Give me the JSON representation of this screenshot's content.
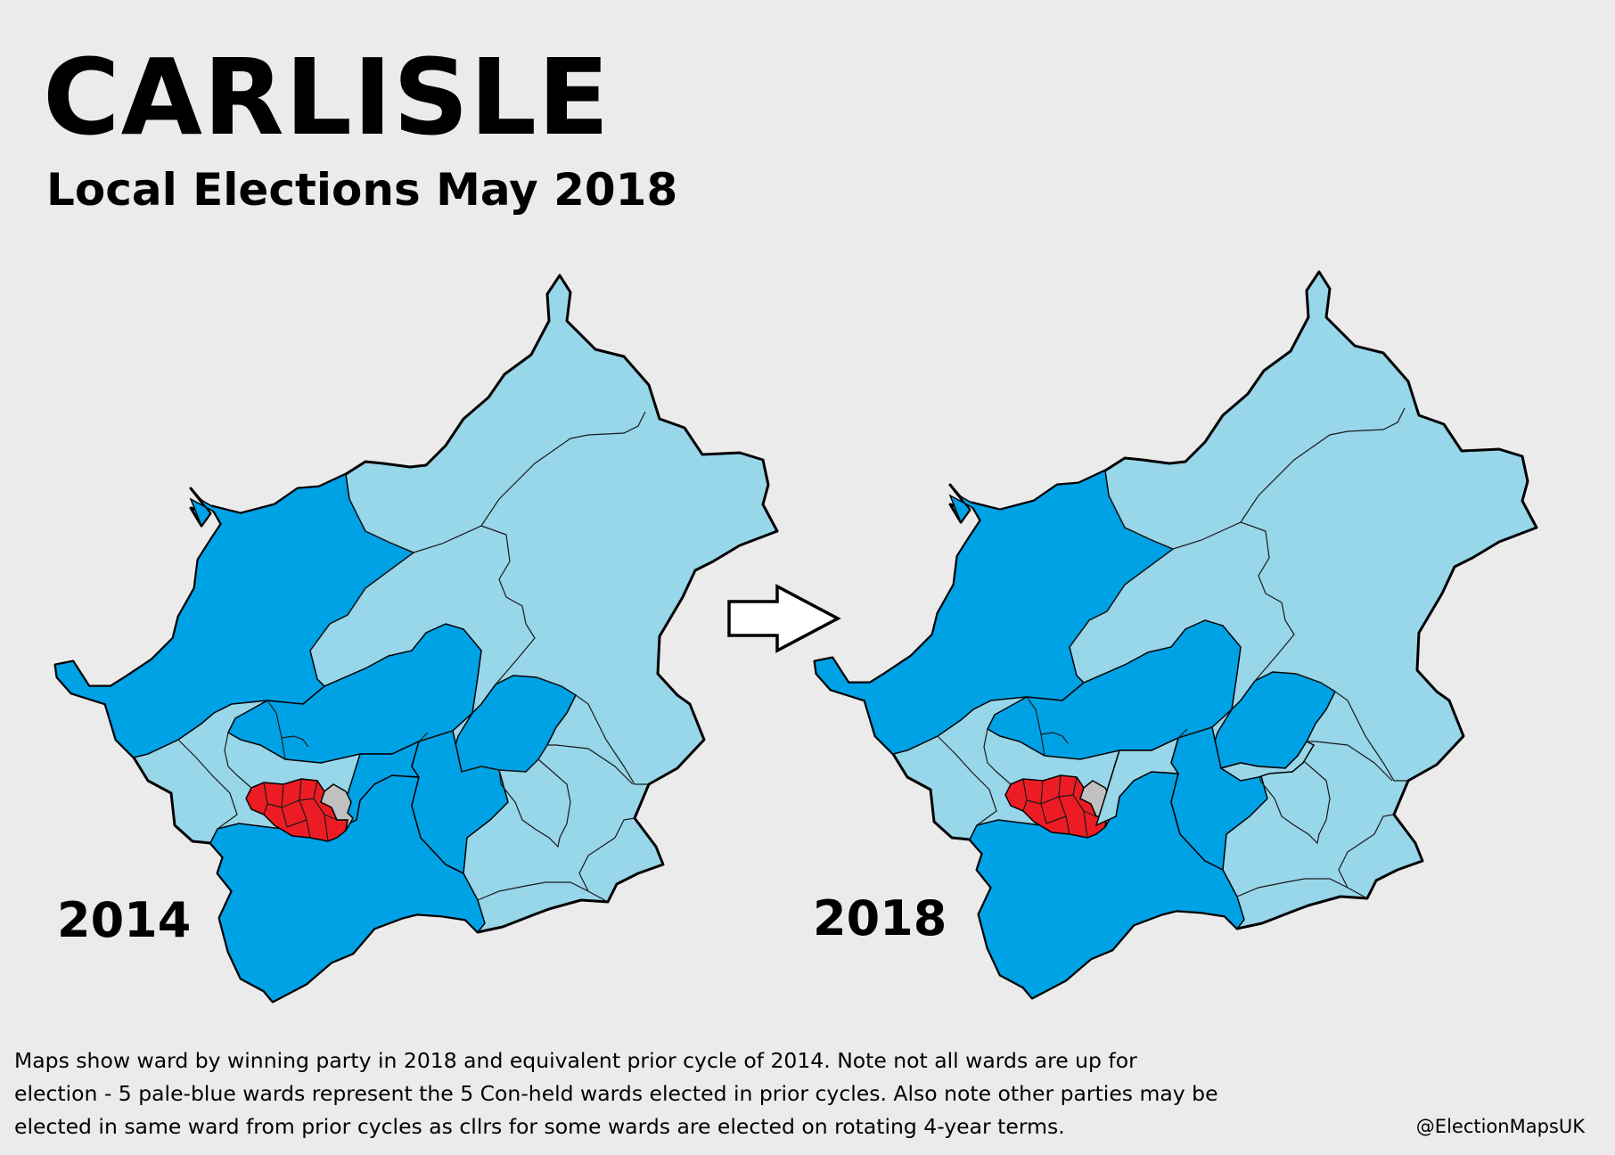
{
  "title": "CARLISLE",
  "subtitle": "Local Elections May 2018",
  "maps": [
    {
      "year": "2014"
    },
    {
      "year": "2018"
    }
  ],
  "arrow_icon": "right-arrow-icon",
  "colors": {
    "con_held": "#00a2e6",
    "con_prior_cycle": "#98d6e9",
    "lab": "#ed1c24",
    "other": "#c0c0c0",
    "background": "#ebebeb"
  },
  "note_lines": [
    "Maps show ward by winning party in 2018 and equivalent prior cycle of 2014. Note not all wards are up for",
    "election - 5 pale-blue wards represent the 5 Con-held wards elected in prior cycles. Also note other parties may be",
    "elected in same ward from prior cycles as cllrs for some wards are elected on rotating 4-year terms."
  ],
  "credit": "@ElectionMapsUK"
}
